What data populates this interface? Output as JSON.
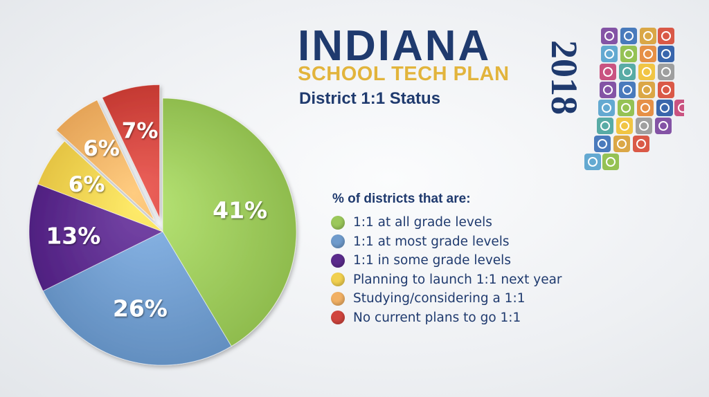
{
  "header": {
    "title": "INDIANA",
    "subtitle": "SCHOOL TECH PLAN",
    "year": "2018",
    "chart_title": "District 1:1 Status"
  },
  "legend": {
    "title": "% of districts that are:"
  },
  "logo": {
    "icon_names": [
      "bulb-icon",
      "cloud-icon",
      "lock-icon",
      "map-pin-icon",
      "globe-icon",
      "camera-icon",
      "rss-icon",
      "mail-icon",
      "link-icon",
      "play-icon",
      "dollar-icon",
      "calendar-icon",
      "laptop-icon",
      "eye-icon",
      "pencil-icon",
      "percent-icon",
      "users-icon",
      "gear-icon",
      "wifi-icon",
      "tablet-icon",
      "chat-icon",
      "recycle-icon",
      "bar-chart-icon",
      "network-icon"
    ]
  },
  "chart_data": {
    "type": "pie",
    "title": "District 1:1 Status",
    "start_angle_deg": 0,
    "direction": "clockwise",
    "exploded": [
      "No current plans to go 1:1",
      "Studying/considering a 1:1"
    ],
    "slices": [
      {
        "label": "1:1 at all grade levels",
        "value": 41,
        "value_label": "41%",
        "color": "#9bc85a"
      },
      {
        "label": "1:1 at most grade levels",
        "value": 26,
        "value_label": "26%",
        "color": "#6f9bcc"
      },
      {
        "label": "1:1 in some grade levels",
        "value": 13,
        "value_label": "13%",
        "color": "#5b2b8c"
      },
      {
        "label": "Planning to launch 1:1 next year",
        "value": 6,
        "value_label": "6%",
        "color": "#f1d04f"
      },
      {
        "label": "Studying/considering a 1:1",
        "value": 6,
        "value_label": "6%",
        "color": "#f1b064"
      },
      {
        "label": "No current plans to go 1:1",
        "value": 7,
        "value_label": "7%",
        "color": "#d0453e"
      }
    ]
  }
}
